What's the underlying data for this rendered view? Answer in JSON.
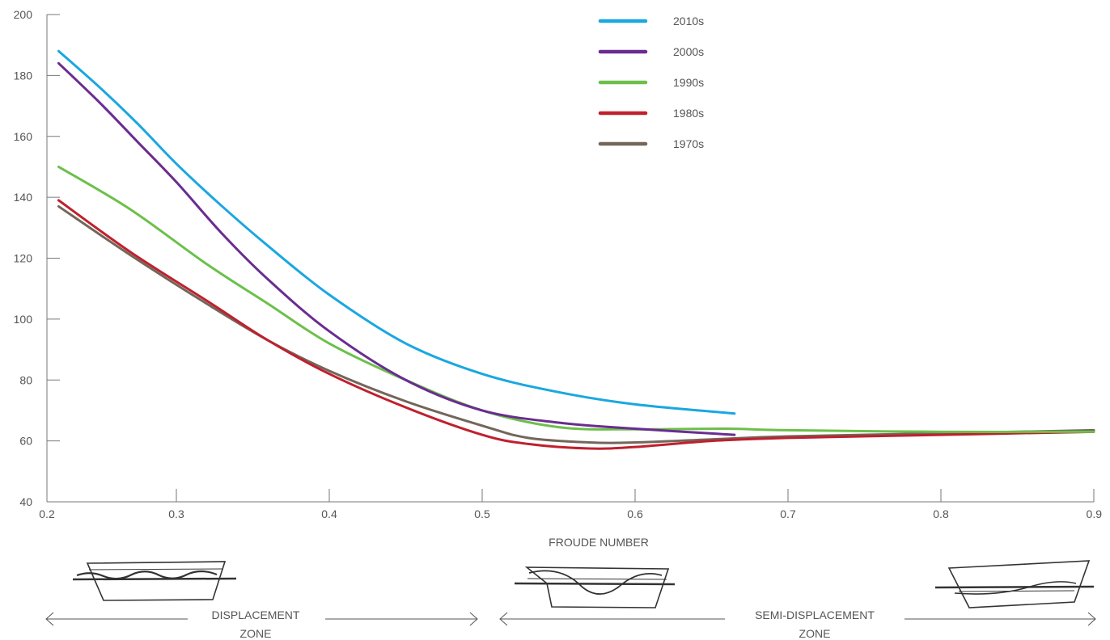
{
  "chart_data": {
    "type": "line",
    "title": "",
    "xlabel": "FROUDE NUMBER",
    "ylabel": "",
    "xlim": [
      0.2,
      0.9
    ],
    "ylim": [
      40,
      200
    ],
    "xticks": [
      0.2,
      0.3,
      0.4,
      0.5,
      0.6,
      0.7,
      0.8,
      0.9
    ],
    "xtick_labels": [
      "0.2",
      "0.3",
      "0.4",
      "0.5",
      "0.6",
      "0.7",
      "0.8",
      "0.9"
    ],
    "yticks": [
      40,
      60,
      80,
      100,
      120,
      140,
      160,
      180,
      200
    ],
    "ytick_labels": [
      "40",
      "60",
      "80",
      "100",
      "120",
      "140",
      "160",
      "180",
      "200"
    ],
    "grid": false,
    "legend_position": "top-center",
    "series": [
      {
        "name": "2010s",
        "color": "#1aa7e0",
        "x": [
          0.223,
          0.25,
          0.275,
          0.3,
          0.33,
          0.36,
          0.4,
          0.45,
          0.5,
          0.55,
          0.6,
          0.665
        ],
        "y": [
          188,
          176,
          164,
          151,
          137,
          124,
          108,
          92,
          82,
          76,
          72,
          69
        ]
      },
      {
        "name": "2000s",
        "color": "#6a2c91",
        "x": [
          0.223,
          0.25,
          0.275,
          0.3,
          0.33,
          0.36,
          0.4,
          0.45,
          0.5,
          0.55,
          0.6,
          0.665
        ],
        "y": [
          184,
          171,
          158,
          145,
          128,
          113,
          96,
          80,
          70,
          66,
          64,
          62
        ]
      },
      {
        "name": "1990s",
        "color": "#6cc04a",
        "x": [
          0.223,
          0.27,
          0.32,
          0.36,
          0.4,
          0.45,
          0.5,
          0.55,
          0.6,
          0.66,
          0.7,
          0.8,
          0.9
        ],
        "y": [
          150,
          136,
          118,
          105,
          92,
          80,
          70,
          64.5,
          63.8,
          64,
          63.5,
          63,
          63
        ]
      },
      {
        "name": "1980s",
        "color": "#c0202e",
        "x": [
          0.223,
          0.27,
          0.32,
          0.36,
          0.4,
          0.45,
          0.5,
          0.53,
          0.57,
          0.6,
          0.65,
          0.7,
          0.8,
          0.9
        ],
        "y": [
          139,
          122,
          106,
          93,
          82,
          71,
          62,
          59,
          57.5,
          58,
          60,
          61,
          62,
          63
        ]
      },
      {
        "name": "1970s",
        "color": "#73665a",
        "x": [
          0.223,
          0.27,
          0.32,
          0.36,
          0.4,
          0.45,
          0.5,
          0.53,
          0.57,
          0.6,
          0.65,
          0.7,
          0.8,
          0.9
        ],
        "y": [
          137,
          121,
          105,
          93,
          83,
          73,
          65,
          61,
          59.5,
          59.5,
          60.5,
          61.5,
          62.5,
          63.5
        ]
      }
    ],
    "zones": [
      {
        "label_line1": "DISPLACEMENT",
        "label_line2": "ZONE"
      },
      {
        "label_line1": "SEMI-DISPLACEMENT",
        "label_line2": "ZONE"
      }
    ]
  }
}
